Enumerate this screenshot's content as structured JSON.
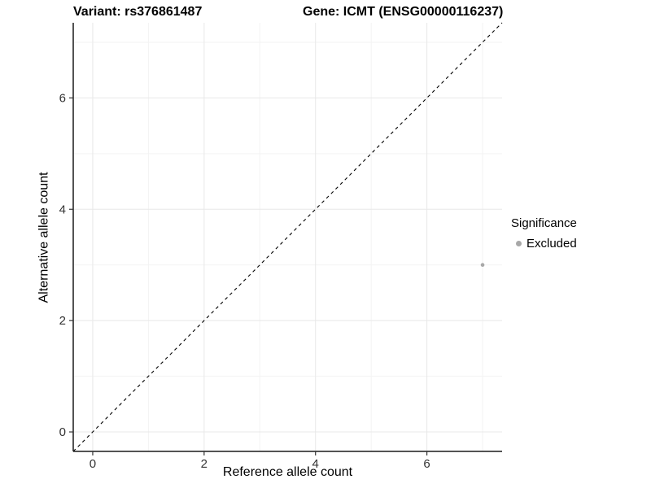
{
  "chart_data": {
    "type": "scatter",
    "title_left": "Variant: rs376861487",
    "title_right": "Gene: ICMT (ENSG00000116237)",
    "xlabel": "Reference allele count",
    "ylabel": "Alternative allele count",
    "xlim": [
      -0.35,
      7.35
    ],
    "ylim": [
      -0.35,
      7.35
    ],
    "xticks": [
      0,
      2,
      4,
      6
    ],
    "yticks": [
      0,
      2,
      4,
      6
    ],
    "xminor": [
      1,
      3,
      5,
      7
    ],
    "yminor": [
      1,
      3,
      5,
      7
    ],
    "grid": true,
    "legend_position": "right",
    "identity_line": {
      "style": "dashed",
      "from_xy": [
        -0.35,
        -0.35
      ],
      "to_xy": [
        7.35,
        7.35
      ],
      "color": "#000000"
    },
    "series": [
      {
        "name": "Excluded",
        "color": "#a8a8a8",
        "point_radius": 2.3,
        "points": [
          {
            "x": 7,
            "y": 3
          }
        ]
      }
    ],
    "legend": {
      "title": "Significance",
      "items": [
        {
          "label": "Excluded",
          "color": "#a8a8a8"
        }
      ]
    },
    "colors": {
      "background": "#ffffff",
      "grid_major": "#e8e8e8",
      "grid_minor": "#f3f3f3",
      "axis_line": "#1a1a1a",
      "tick_mark": "#333333",
      "tick_label": "#333333",
      "title_text": "#000000"
    }
  }
}
